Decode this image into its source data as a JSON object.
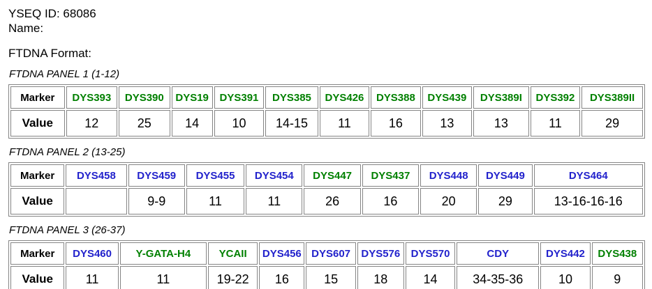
{
  "header": {
    "yseq_id": "YSEQ ID: 68086",
    "name": "Name:",
    "format": "FTDNA Format:"
  },
  "colors": {
    "green": "#008000",
    "blue": "#2222CC",
    "border": "#848484",
    "value_text": "#000000"
  },
  "panels": [
    {
      "title": "FTDNA PANEL 1 (1-12)",
      "marker_label": "Marker",
      "value_label": "Value",
      "columns": [
        {
          "marker": "DYS393",
          "color": "green",
          "value": "12"
        },
        {
          "marker": "DYS390",
          "color": "green",
          "value": "25"
        },
        {
          "marker": "DYS19",
          "color": "green",
          "value": "14"
        },
        {
          "marker": "DYS391",
          "color": "green",
          "value": "10"
        },
        {
          "marker": "DYS385",
          "color": "green",
          "value": "14-15"
        },
        {
          "marker": "DYS426",
          "color": "green",
          "value": "11"
        },
        {
          "marker": "DYS388",
          "color": "green",
          "value": "16"
        },
        {
          "marker": "DYS439",
          "color": "green",
          "value": "13"
        },
        {
          "marker": "DYS389I",
          "color": "green",
          "value": "13"
        },
        {
          "marker": "DYS392",
          "color": "green",
          "value": "11"
        },
        {
          "marker": "DYS389II",
          "color": "green",
          "value": "29"
        }
      ]
    },
    {
      "title": "FTDNA PANEL 2 (13-25)",
      "marker_label": "Marker",
      "value_label": "Value",
      "columns": [
        {
          "marker": "DYS458",
          "color": "blue",
          "value": ""
        },
        {
          "marker": "DYS459",
          "color": "blue",
          "value": "9-9"
        },
        {
          "marker": "DYS455",
          "color": "blue",
          "value": "11"
        },
        {
          "marker": "DYS454",
          "color": "blue",
          "value": "11"
        },
        {
          "marker": "DYS447",
          "color": "green",
          "value": "26"
        },
        {
          "marker": "DYS437",
          "color": "green",
          "value": "16"
        },
        {
          "marker": "DYS448",
          "color": "blue",
          "value": "20"
        },
        {
          "marker": "DYS449",
          "color": "blue",
          "value": "29"
        },
        {
          "marker": "DYS464",
          "color": "blue",
          "value": "13-16-16-16"
        }
      ]
    },
    {
      "title": "FTDNA PANEL 3 (26-37)",
      "marker_label": "Marker",
      "value_label": "Value",
      "columns": [
        {
          "marker": "DYS460",
          "color": "blue",
          "value": "11"
        },
        {
          "marker": "Y-GATA-H4",
          "color": "green",
          "value": "11"
        },
        {
          "marker": "YCAII",
          "color": "green",
          "value": "19-22"
        },
        {
          "marker": "DYS456",
          "color": "blue",
          "value": "16"
        },
        {
          "marker": "DYS607",
          "color": "blue",
          "value": "15"
        },
        {
          "marker": "DYS576",
          "color": "blue",
          "value": "18"
        },
        {
          "marker": "DYS570",
          "color": "blue",
          "value": "14"
        },
        {
          "marker": "CDY",
          "color": "blue",
          "value": "34-35-36"
        },
        {
          "marker": "DYS442",
          "color": "blue",
          "value": "10"
        },
        {
          "marker": "DYS438",
          "color": "green",
          "value": "9"
        }
      ]
    }
  ]
}
